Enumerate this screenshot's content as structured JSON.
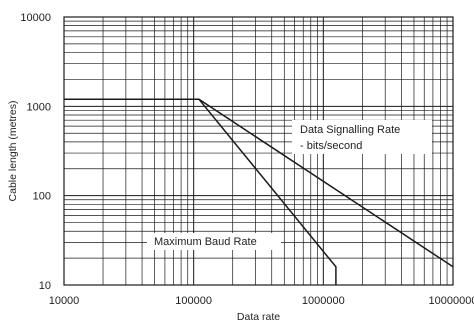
{
  "chart_data": {
    "type": "line",
    "xlabel": "Data rate",
    "ylabel": "Cable length (metres)",
    "xscale": "log",
    "yscale": "log",
    "xlim": [
      10000,
      10000000
    ],
    "ylim": [
      10,
      10000
    ],
    "x_ticks": [
      10000,
      100000,
      1000000,
      10000000
    ],
    "x_tick_labels": [
      "10000",
      "100000",
      "1000000",
      "10000000"
    ],
    "y_ticks": [
      10,
      100,
      1000,
      10000
    ],
    "y_tick_labels": [
      "10",
      "100",
      "1000",
      "10000"
    ],
    "grid": true,
    "series": [
      {
        "x": [
          10000,
          110000,
          10000000
        ],
        "y": [
          1200,
          1200,
          16
        ]
      },
      {
        "x": [
          110000,
          1250000,
          1250000
        ],
        "y": [
          1200,
          16,
          10
        ]
      }
    ],
    "annotations": [
      {
        "id": "dsr",
        "lines": [
          "Data Signalling Rate",
          "- bits/second"
        ]
      },
      {
        "id": "mbr",
        "lines": [
          "Maximum Baud Rate"
        ]
      }
    ]
  }
}
